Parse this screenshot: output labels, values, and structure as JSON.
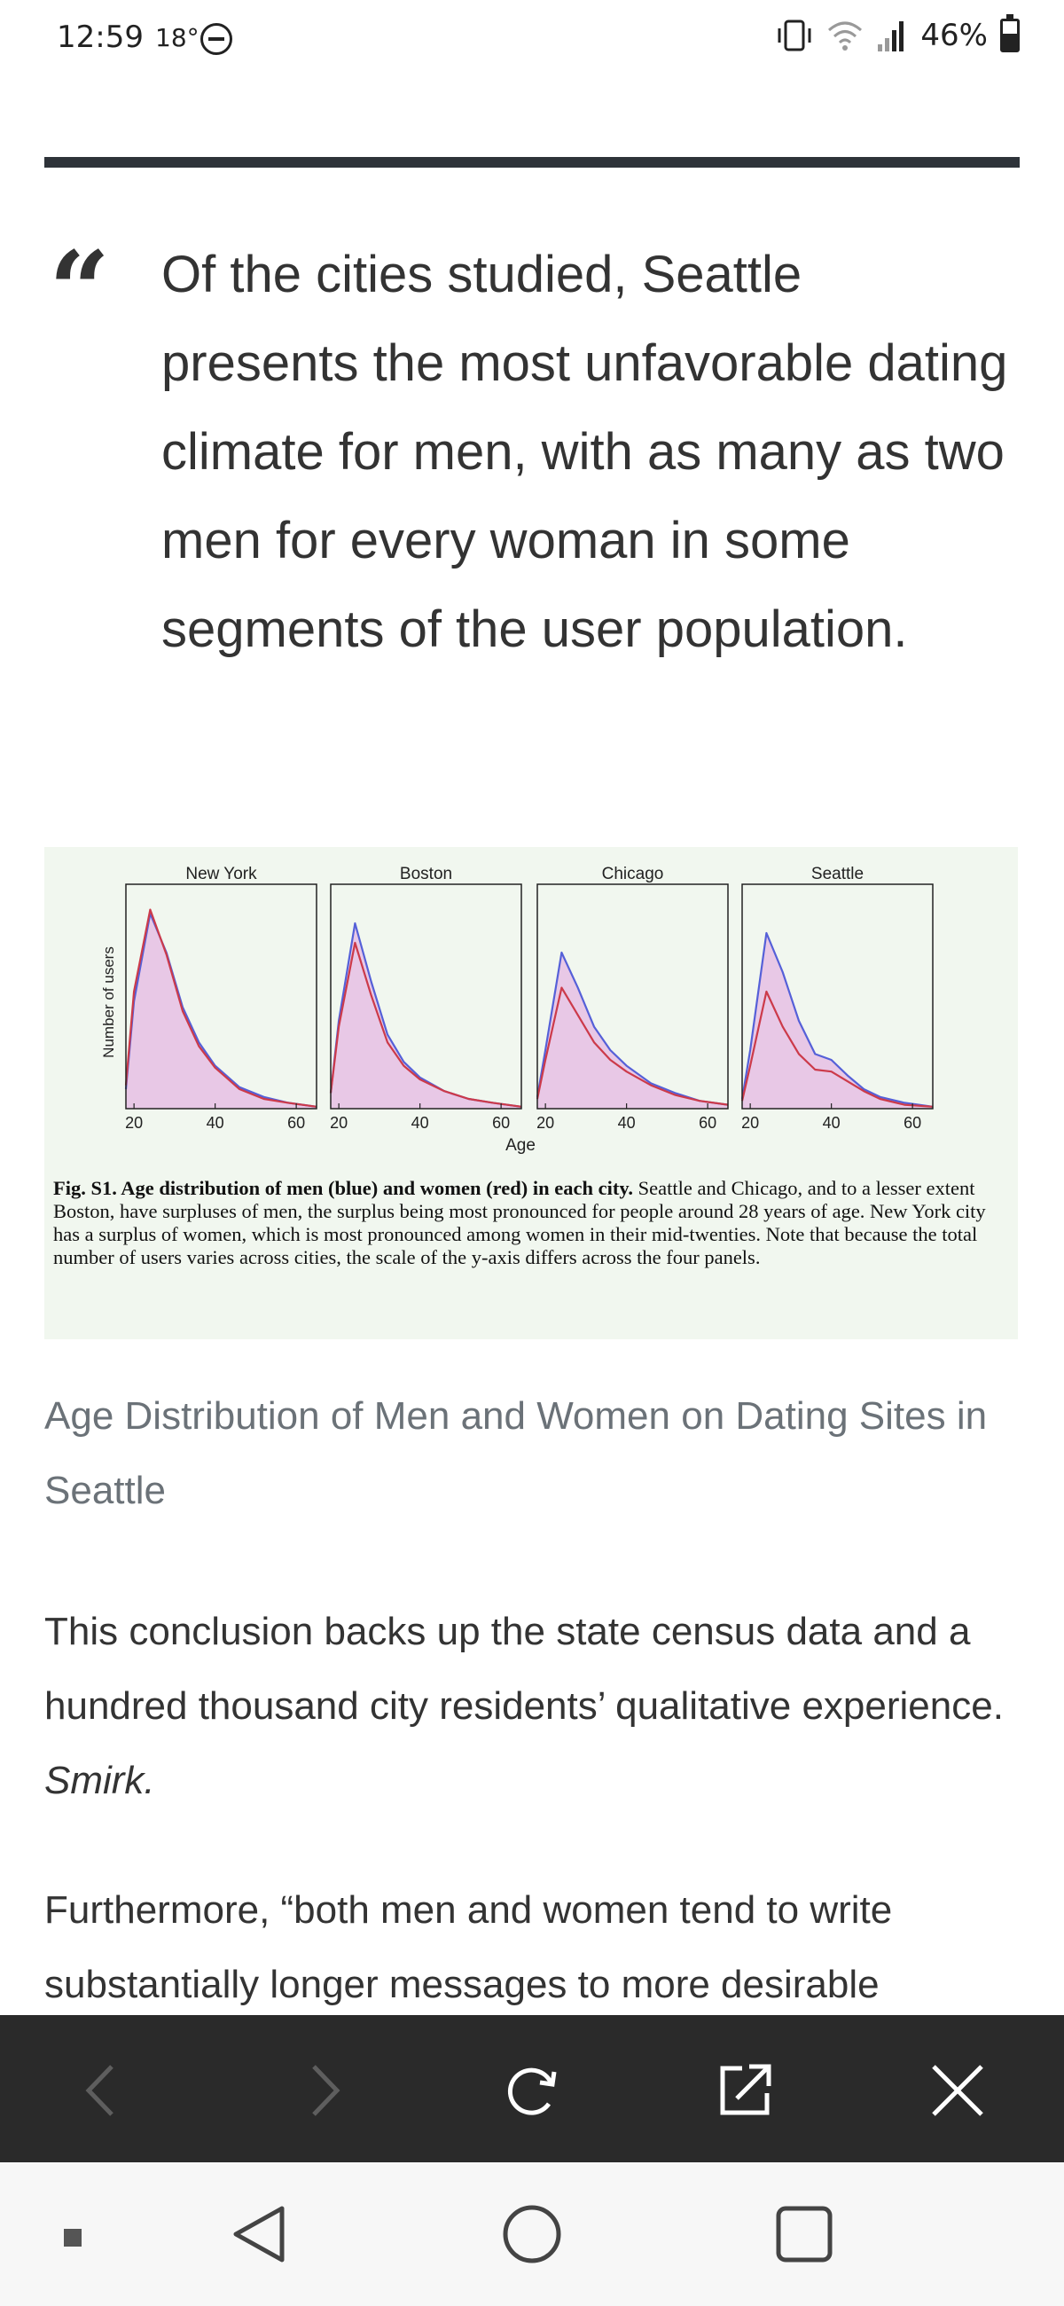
{
  "status_bar": {
    "time": "12:59",
    "temperature": "18°",
    "battery": "46%"
  },
  "article": {
    "quote": "Of the cities studied, Seattle presents the most unfavorable dating climate for men, with as many as two men for every woman in some segments of the user population.",
    "quote_mark": "“",
    "figure_caption_bold": "Fig. S1. Age distribution of men (blue) and women (red) in each city.",
    "figure_caption_text": " Seattle and Chicago, and to a lesser extent Boston, have surpluses of men, the surplus being most pronounced for people around 28 years of age. New York city has a surplus of women, which is most pronounced among women in their mid-twenties. Note that because the total number of users varies across cities, the scale of the y-axis differs across the four panels.",
    "figure_title": "Age Distribution of Men and Women on Dating Sites in Seattle",
    "paragraph_1_text": "This conclusion backs up the state census data and a hundred thousand city residents’ qualitative experience. ",
    "paragraph_1_italic": "Smirk.",
    "paragraph_2": "Furthermore, “both men and women tend to write substantially longer messages to more desirable"
  },
  "chart_data": {
    "type": "line",
    "y_axis_label": "Number of users",
    "x_axis_label": "Age",
    "x_ticks": [
      20,
      40,
      60
    ],
    "xlim": [
      18,
      65
    ],
    "colors": {
      "men": "#5560d8",
      "women": "#cc3a4a",
      "fill": "#e8c8e6"
    },
    "panels": [
      {
        "title": "New York",
        "series": [
          {
            "name": "men",
            "x": [
              18,
              20,
              24,
              28,
              32,
              36,
              40,
              46,
              52,
              58,
              65
            ],
            "y": [
              0.1,
              0.55,
              1.0,
              0.8,
              0.52,
              0.34,
              0.22,
              0.11,
              0.06,
              0.03,
              0.01
            ]
          },
          {
            "name": "women",
            "x": [
              18,
              20,
              24,
              28,
              32,
              36,
              40,
              46,
              52,
              58,
              65
            ],
            "y": [
              0.12,
              0.6,
              1.02,
              0.79,
              0.5,
              0.32,
              0.21,
              0.1,
              0.05,
              0.03,
              0.01
            ]
          }
        ]
      },
      {
        "title": "Boston",
        "series": [
          {
            "name": "men",
            "x": [
              18,
              20,
              24,
              28,
              32,
              36,
              40,
              46,
              52,
              58,
              65
            ],
            "y": [
              0.08,
              0.45,
              0.95,
              0.65,
              0.38,
              0.24,
              0.16,
              0.09,
              0.05,
              0.03,
              0.01
            ]
          },
          {
            "name": "women",
            "x": [
              18,
              20,
              24,
              28,
              32,
              36,
              40,
              46,
              52,
              58,
              65
            ],
            "y": [
              0.08,
              0.42,
              0.85,
              0.58,
              0.34,
              0.22,
              0.15,
              0.09,
              0.05,
              0.03,
              0.01
            ]
          }
        ]
      },
      {
        "title": "Chicago",
        "series": [
          {
            "name": "men",
            "x": [
              18,
              20,
              24,
              28,
              32,
              36,
              40,
              46,
              52,
              58,
              65
            ],
            "y": [
              0.06,
              0.3,
              0.8,
              0.62,
              0.42,
              0.3,
              0.22,
              0.13,
              0.08,
              0.04,
              0.02
            ]
          },
          {
            "name": "women",
            "x": [
              18,
              20,
              24,
              28,
              32,
              36,
              40,
              46,
              52,
              58,
              65
            ],
            "y": [
              0.05,
              0.25,
              0.62,
              0.48,
              0.34,
              0.25,
              0.19,
              0.12,
              0.07,
              0.04,
              0.02
            ]
          }
        ]
      },
      {
        "title": "Seattle",
        "series": [
          {
            "name": "men",
            "x": [
              18,
              20,
              24,
              28,
              32,
              36,
              40,
              44,
              48,
              52,
              58,
              65
            ],
            "y": [
              0.05,
              0.3,
              0.9,
              0.7,
              0.45,
              0.28,
              0.25,
              0.17,
              0.1,
              0.06,
              0.03,
              0.01
            ]
          },
          {
            "name": "women",
            "x": [
              18,
              20,
              24,
              28,
              32,
              36,
              40,
              44,
              48,
              52,
              58,
              65
            ],
            "y": [
              0.04,
              0.22,
              0.6,
              0.42,
              0.28,
              0.2,
              0.19,
              0.14,
              0.09,
              0.05,
              0.02,
              0.01
            ]
          }
        ]
      }
    ]
  },
  "icons": {
    "back": "chevron-left-icon",
    "forward": "chevron-right-icon",
    "reload": "reload-icon",
    "open_external": "open-external-icon",
    "close": "close-icon"
  }
}
